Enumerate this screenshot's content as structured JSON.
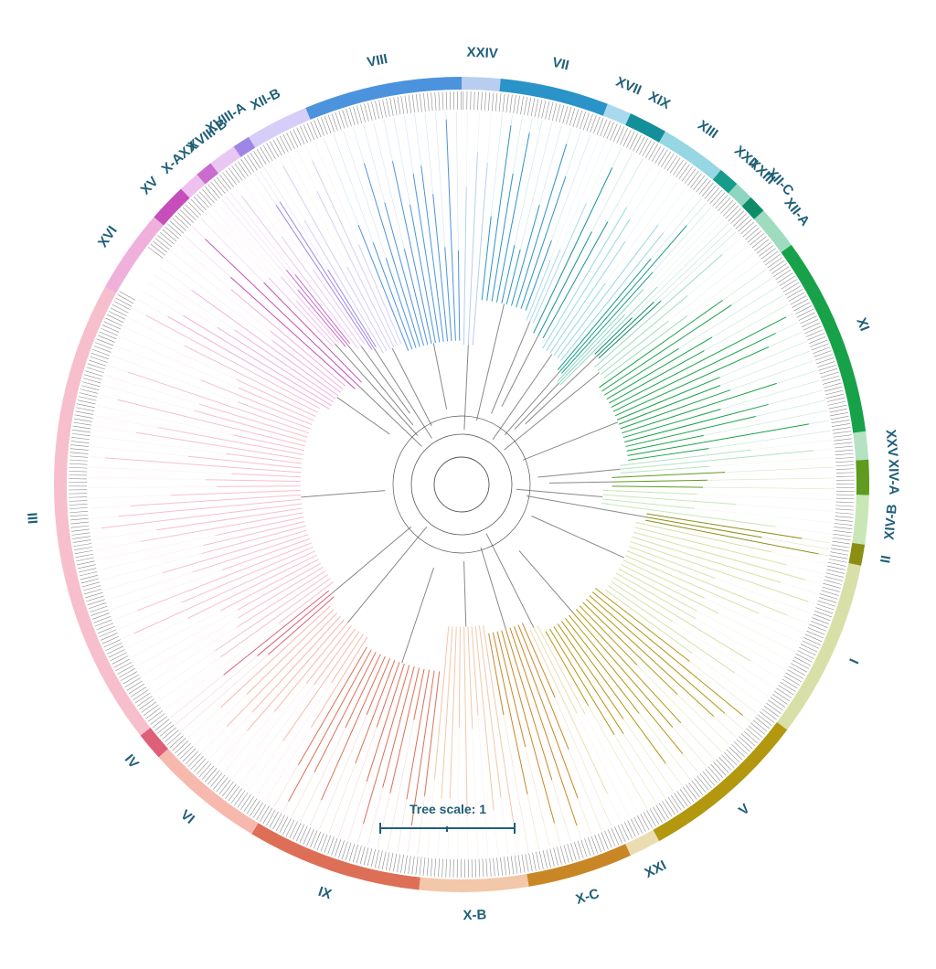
{
  "tree_scale": {
    "label": "Tree scale: 1"
  },
  "palette": {
    "ring_text": "#1f5f78",
    "branch_neutral": "#888888",
    "tip_dots": "#8a8a8a"
  },
  "clades": [
    {
      "name": "XXIV",
      "color": "#b9cdf0"
    },
    {
      "name": "VII",
      "color": "#2a93c8"
    },
    {
      "name": "XVII",
      "color": "#a9d9ee"
    },
    {
      "name": "XIX",
      "color": "#138f9a"
    },
    {
      "name": "XIII",
      "color": "#96d7e3"
    },
    {
      "name": "XXII",
      "color": "#159c8a"
    },
    {
      "name": "XXIII",
      "color": "#8fd6c2"
    },
    {
      "name": "XII-C",
      "color": "#0e8c69"
    },
    {
      "name": "XII-A",
      "color": "#9fdcbf"
    },
    {
      "name": "XI",
      "color": "#17a24a"
    },
    {
      "name": "XXV",
      "color": "#b5e2c3"
    },
    {
      "name": "XIV-A",
      "color": "#5e9b1f"
    },
    {
      "name": "XIV-B",
      "color": "#c9e6b7"
    },
    {
      "name": "II",
      "color": "#8a8f14"
    },
    {
      "name": "I",
      "color": "#d8e0a8"
    },
    {
      "name": "V",
      "color": "#b2970f"
    },
    {
      "name": "XXI",
      "color": "#ecdcb2"
    },
    {
      "name": "X-C",
      "color": "#c98625"
    },
    {
      "name": "X-B",
      "color": "#f3c7a9"
    },
    {
      "name": "IX",
      "color": "#de6f57"
    },
    {
      "name": "VI",
      "color": "#f7b9ad"
    },
    {
      "name": "IV",
      "color": "#df5f78"
    },
    {
      "name": "III",
      "color": "#f7bfce"
    },
    {
      "name": "XVI",
      "color": "#f0b0dc"
    },
    {
      "name": "XV",
      "color": "#c54ebb"
    },
    {
      "name": "X-A",
      "color": "#efbff0"
    },
    {
      "name": "XX",
      "color": "#c86ccd"
    },
    {
      "name": "XVIII-B",
      "color": "#e8c8f3"
    },
    {
      "name": "XVIII-A",
      "color": "#9f86e6"
    },
    {
      "name": "XII-B",
      "color": "#d6cef7"
    },
    {
      "name": "VIII",
      "color": "#4c93de"
    }
  ]
}
